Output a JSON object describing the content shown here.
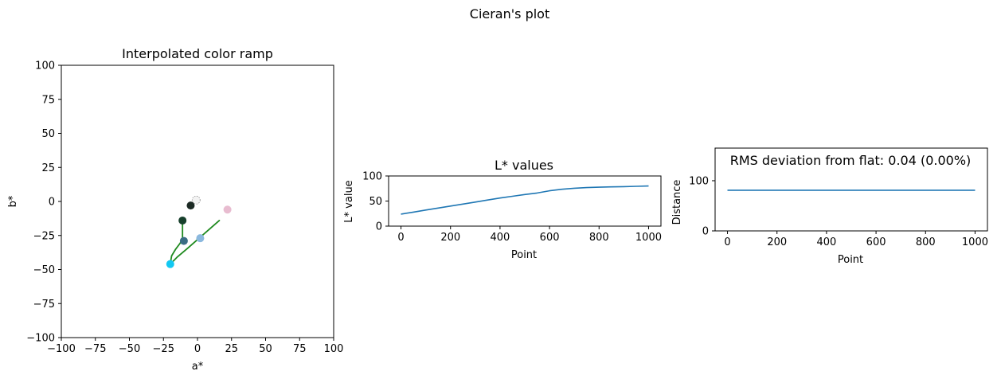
{
  "figure": {
    "suptitle": "Cieran's plot"
  },
  "chart_data": [
    {
      "type": "scatter",
      "title": "Interpolated color ramp",
      "xlabel": "a*",
      "ylabel": "b*",
      "xlim": [
        -100,
        100
      ],
      "ylim": [
        -100,
        100
      ],
      "xticks": [
        -100,
        -75,
        -50,
        -25,
        0,
        25,
        50,
        75,
        100
      ],
      "yticks": [
        -100,
        -75,
        -50,
        -25,
        0,
        25,
        50,
        75,
        100
      ],
      "xtick_labels": [
        "−100",
        "−75",
        "−50",
        "−25",
        "0",
        "25",
        "50",
        "75",
        "100"
      ],
      "ytick_labels": [
        "−100",
        "−75",
        "−50",
        "−25",
        "0",
        "25",
        "50",
        "75",
        "100"
      ],
      "points": [
        {
          "x": 22,
          "y": -6,
          "color": "#e8bcd0"
        },
        {
          "x": -1,
          "y": 1,
          "color": "#f3f3f3",
          "edge": "#8a8a8a"
        },
        {
          "x": 2,
          "y": -27,
          "color": "#8bb8de"
        },
        {
          "x": -5,
          "y": -3,
          "color": "#1c2a24"
        },
        {
          "x": -11,
          "y": -14,
          "color": "#17402c"
        },
        {
          "x": -10,
          "y": -29,
          "color": "#3a6d84"
        },
        {
          "x": -20,
          "y": -46,
          "color": "#12c8f2"
        }
      ],
      "path": {
        "color": "#1f8a1f",
        "x": [
          16,
          8,
          0,
          -8,
          -15,
          -20,
          -19,
          -16,
          -13,
          -11,
          -11,
          -11
        ],
        "y": [
          -14,
          -21,
          -28,
          -35,
          -41,
          -46,
          -40,
          -35,
          -31,
          -28,
          -22,
          -13
        ]
      }
    },
    {
      "type": "line",
      "title": "L* values",
      "xlabel": "Point",
      "ylabel": "L* value",
      "xlim": [
        -50,
        1050
      ],
      "ylim": [
        0,
        100
      ],
      "xticks": [
        0,
        200,
        400,
        600,
        800,
        1000
      ],
      "yticks": [
        0,
        50,
        100
      ],
      "xtick_labels": [
        "0",
        "200",
        "400",
        "600",
        "800",
        "1000"
      ],
      "ytick_labels": [
        "0",
        "50",
        "100"
      ],
      "series": [
        {
          "color": "#1f77b4",
          "x": [
            0,
            50,
            100,
            150,
            200,
            250,
            300,
            350,
            400,
            450,
            500,
            550,
            600,
            650,
            700,
            750,
            800,
            850,
            900,
            950,
            1000
          ],
          "y": [
            24,
            28,
            32,
            36,
            40,
            44,
            48,
            52,
            56,
            59.5,
            63,
            66,
            70.5,
            73.5,
            75.5,
            76.8,
            77.6,
            78.2,
            78.8,
            79.4,
            80
          ]
        }
      ]
    },
    {
      "type": "line",
      "title": "RMS deviation from flat: 0.04 (0.00%)",
      "xlabel": "Point",
      "ylabel": "Distance",
      "xlim": [
        -50,
        1050
      ],
      "ylim": [
        0,
        165
      ],
      "xticks": [
        0,
        200,
        400,
        600,
        800,
        1000
      ],
      "yticks": [
        0,
        100
      ],
      "xtick_labels": [
        "0",
        "200",
        "400",
        "600",
        "800",
        "1000"
      ],
      "ytick_labels": [
        "0",
        "100"
      ],
      "series": [
        {
          "color": "#1f77b4",
          "x": [
            0,
            1000
          ],
          "y": [
            81,
            81
          ]
        }
      ]
    }
  ]
}
